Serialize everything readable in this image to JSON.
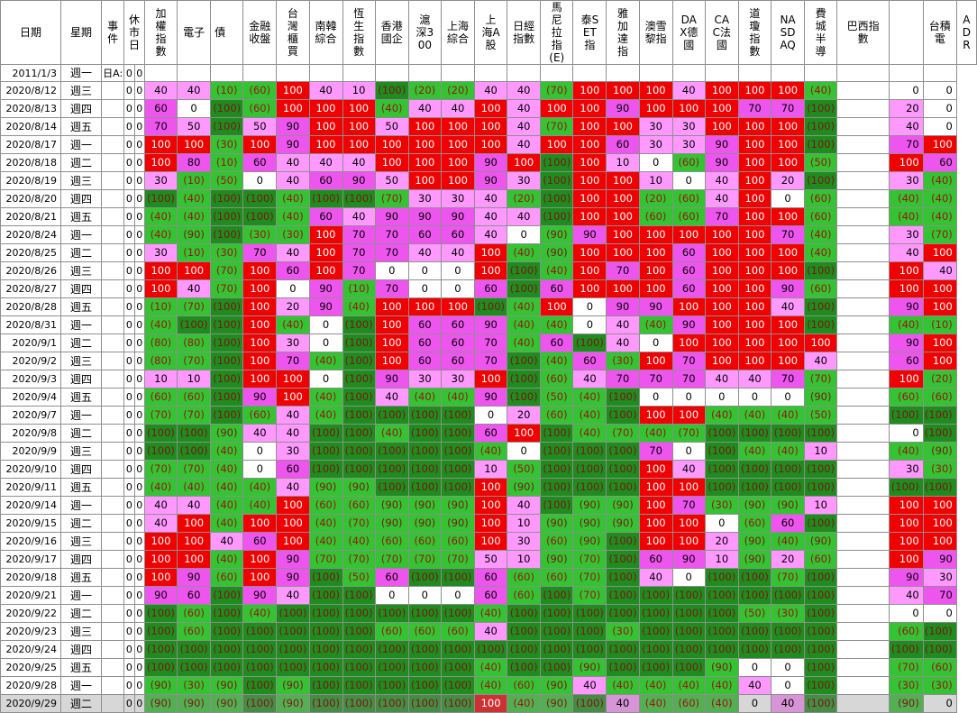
{
  "headers": [
    "日期",
    "星期",
    "事件",
    "休市日",
    "加權指數",
    "電子",
    "債",
    "金融收盤",
    "台灣櫃買",
    "南韓綜合",
    "恆生指數",
    "香港國企",
    "滬深300",
    "上海綜合",
    "上海A股",
    "日經指數",
    "馬尼拉指(E)",
    "泰SET指",
    "雅加達指",
    "澳雪黎指",
    "DAX德國",
    "CAC法國",
    "道瓊指數",
    "NASDAQ",
    "費城半導",
    "巴西指數",
    "台積電",
    "ADR"
  ],
  "palette": {
    "dark_green": "#1e8c1e",
    "light_green": "#33c333",
    "white": "#ffffff",
    "pink": "#ff99ff",
    "magenta": "#ee55ee",
    "red": "#f00000"
  },
  "rows": [
    {
      "date": "2011/1/3",
      "wk": "週一",
      "ev": "日A:",
      "h1": "0",
      "h2": "0",
      "vals": [
        "",
        "",
        "",
        "",
        "",
        "",
        "",
        "",
        "",
        "",
        "",
        "",
        "",
        "",
        "",
        "",
        "",
        "",
        "",
        "",
        "",
        "",
        "",
        ""
      ]
    },
    {
      "date": "2020/8/12",
      "wk": "週三",
      "ev": "",
      "h1": "0",
      "h2": "0",
      "vals": [
        "40",
        "40",
        "(10)",
        "(60)",
        "100",
        "40",
        "10",
        "(100)",
        "(20)",
        "(20)",
        "40",
        "40",
        "(70)",
        "100",
        "100",
        "100",
        "40",
        "100",
        "100",
        "100",
        "(40)",
        "",
        "0",
        "0"
      ]
    },
    {
      "date": "2020/8/13",
      "wk": "週四",
      "ev": "",
      "h1": "0",
      "h2": "0",
      "vals": [
        "60",
        "0",
        "(100)",
        "(60)",
        "100",
        "100",
        "100",
        "(40)",
        "40",
        "40",
        "100",
        "40",
        "100",
        "100",
        "90",
        "100",
        "100",
        "100",
        "70",
        "70",
        "(100)",
        "",
        "20",
        "0"
      ]
    },
    {
      "date": "2020/8/14",
      "wk": "週五",
      "ev": "",
      "h1": "0",
      "h2": "0",
      "vals": [
        "70",
        "50",
        "(100)",
        "50",
        "90",
        "100",
        "100",
        "50",
        "100",
        "100",
        "100",
        "40",
        "(70)",
        "100",
        "100",
        "30",
        "30",
        "100",
        "100",
        "100",
        "(100)",
        "",
        "40",
        "0"
      ]
    },
    {
      "date": "2020/8/17",
      "wk": "週一",
      "ev": "",
      "h1": "0",
      "h2": "0",
      "vals": [
        "100",
        "100",
        "(30)",
        "100",
        "90",
        "100",
        "100",
        "100",
        "100",
        "100",
        "100",
        "40",
        "100",
        "100",
        "60",
        "30",
        "30",
        "90",
        "100",
        "100",
        "(100)",
        "",
        "70",
        "100"
      ]
    },
    {
      "date": "2020/8/18",
      "wk": "週二",
      "ev": "",
      "h1": "0",
      "h2": "0",
      "vals": [
        "100",
        "80",
        "(10)",
        "60",
        "40",
        "40",
        "40",
        "100",
        "100",
        "100",
        "90",
        "100",
        "(100)",
        "100",
        "10",
        "0",
        "(60)",
        "90",
        "100",
        "100",
        "(50)",
        "",
        "100",
        "60"
      ]
    },
    {
      "date": "2020/8/19",
      "wk": "週三",
      "ev": "",
      "h1": "0",
      "h2": "0",
      "vals": [
        "30",
        "(10)",
        "(50)",
        "0",
        "40",
        "60",
        "90",
        "50",
        "100",
        "100",
        "90",
        "30",
        "(100)",
        "100",
        "100",
        "10",
        "0",
        "40",
        "100",
        "20",
        "(100)",
        "",
        "30",
        "(40)"
      ]
    },
    {
      "date": "2020/8/20",
      "wk": "週四",
      "ev": "",
      "h1": "0",
      "h2": "0",
      "vals": [
        "(100)",
        "(40)",
        "(100)",
        "(100)",
        "(40)",
        "(100)",
        "(100)",
        "(70)",
        "30",
        "30",
        "40",
        "(20)",
        "(100)",
        "100",
        "100",
        "(20)",
        "(60)",
        "40",
        "100",
        "0",
        "(60)",
        "",
        "(40)",
        "(40)"
      ]
    },
    {
      "date": "2020/8/21",
      "wk": "週五",
      "ev": "",
      "h1": "0",
      "h2": "0",
      "vals": [
        "(40)",
        "(40)",
        "(100)",
        "(100)",
        "(40)",
        "60",
        "40",
        "90",
        "90",
        "90",
        "40",
        "40",
        "(100)",
        "100",
        "100",
        "(60)",
        "(60)",
        "70",
        "100",
        "100",
        "(60)",
        "",
        "(40)",
        "(40)"
      ]
    },
    {
      "date": "2020/8/24",
      "wk": "週一",
      "ev": "",
      "h1": "0",
      "h2": "0",
      "vals": [
        "(40)",
        "(90)",
        "(100)",
        "(30)",
        "(30)",
        "100",
        "70",
        "70",
        "60",
        "60",
        "40",
        "0",
        "(90)",
        "90",
        "100",
        "100",
        "100",
        "100",
        "100",
        "70",
        "(40)",
        "",
        "30",
        "(70)"
      ]
    },
    {
      "date": "2020/8/25",
      "wk": "週二",
      "ev": "",
      "h1": "0",
      "h2": "0",
      "vals": [
        "30",
        "(10)",
        "(30)",
        "70",
        "40",
        "100",
        "70",
        "70",
        "40",
        "40",
        "100",
        "(40)",
        "(90)",
        "100",
        "100",
        "100",
        "60",
        "100",
        "100",
        "100",
        "(40)",
        "",
        "40",
        "100"
      ]
    },
    {
      "date": "2020/8/26",
      "wk": "週三",
      "ev": "",
      "h1": "0",
      "h2": "0",
      "vals": [
        "100",
        "100",
        "(70)",
        "100",
        "60",
        "100",
        "70",
        "0",
        "0",
        "0",
        "100",
        "(100)",
        "(40)",
        "100",
        "70",
        "100",
        "60",
        "100",
        "100",
        "100",
        "(100)",
        "",
        "100",
        "40"
      ]
    },
    {
      "date": "2020/8/27",
      "wk": "週四",
      "ev": "",
      "h1": "0",
      "h2": "0",
      "vals": [
        "100",
        "40",
        "(70)",
        "100",
        "0",
        "90",
        "(10)",
        "70",
        "0",
        "0",
        "60",
        "(100)",
        "60",
        "100",
        "100",
        "100",
        "60",
        "100",
        "100",
        "90",
        "(60)",
        "",
        "100",
        "100"
      ]
    },
    {
      "date": "2020/8/28",
      "wk": "週五",
      "ev": "",
      "h1": "0",
      "h2": "0",
      "vals": [
        "(10)",
        "(70)",
        "(100)",
        "100",
        "20",
        "90",
        "(40)",
        "100",
        "100",
        "100",
        "(100)",
        "(40)",
        "100",
        "0",
        "90",
        "90",
        "100",
        "100",
        "100",
        "40",
        "(100)",
        "",
        "90",
        "100"
      ]
    },
    {
      "date": "2020/8/31",
      "wk": "週一",
      "ev": "",
      "h1": "0",
      "h2": "0",
      "vals": [
        "(40)",
        "(100)",
        "(100)",
        "100",
        "(40)",
        "0",
        "(100)",
        "100",
        "60",
        "60",
        "90",
        "(40)",
        "(40)",
        "0",
        "40",
        "(40)",
        "90",
        "100",
        "100",
        "100",
        "(100)",
        "",
        "(40)",
        "(10)"
      ]
    },
    {
      "date": "2020/9/1",
      "wk": "週二",
      "ev": "",
      "h1": "0",
      "h2": "0",
      "vals": [
        "(80)",
        "(80)",
        "(100)",
        "100",
        "30",
        "0",
        "(100)",
        "100",
        "60",
        "60",
        "70",
        "(40)",
        "60",
        "(100)",
        "40",
        "0",
        "100",
        "100",
        "100",
        "100",
        "100",
        "",
        "90",
        "100"
      ]
    },
    {
      "date": "2020/9/2",
      "wk": "週三",
      "ev": "",
      "h1": "0",
      "h2": "0",
      "vals": [
        "(80)",
        "(70)",
        "(100)",
        "100",
        "70",
        "(40)",
        "(100)",
        "100",
        "60",
        "60",
        "70",
        "(100)",
        "(40)",
        "60",
        "(30)",
        "100",
        "70",
        "100",
        "100",
        "100",
        "40",
        "",
        "60",
        "100"
      ]
    },
    {
      "date": "2020/9/3",
      "wk": "週四",
      "ev": "",
      "h1": "0",
      "h2": "0",
      "vals": [
        "10",
        "10",
        "(100)",
        "100",
        "100",
        "0",
        "(100)",
        "90",
        "30",
        "30",
        "100",
        "(100)",
        "(60)",
        "40",
        "70",
        "70",
        "70",
        "40",
        "40",
        "70",
        "(70)",
        "",
        "100",
        "(20)"
      ]
    },
    {
      "date": "2020/9/4",
      "wk": "週五",
      "ev": "",
      "h1": "0",
      "h2": "0",
      "vals": [
        "(60)",
        "(60)",
        "(100)",
        "90",
        "100",
        "(40)",
        "(100)",
        "40",
        "(40)",
        "(40)",
        "90",
        "(100)",
        "(50)",
        "(40)",
        "(100)",
        "0",
        "0",
        "0",
        "0",
        "0",
        "(90)",
        "",
        "(60)",
        "(60)"
      ]
    },
    {
      "date": "2020/9/7",
      "wk": "週一",
      "ev": "",
      "h1": "0",
      "h2": "0",
      "vals": [
        "(70)",
        "(70)",
        "(100)",
        "(60)",
        "40",
        "(40)",
        "(100)",
        "(100)",
        "(100)",
        "(100)",
        "0",
        "20",
        "(60)",
        "(40)",
        "(100)",
        "100",
        "100",
        "(40)",
        "(40)",
        "(40)",
        "(50)",
        "",
        "(100)",
        "(100)"
      ]
    },
    {
      "date": "2020/9/8",
      "wk": "週二",
      "ev": "",
      "h1": "0",
      "h2": "0",
      "vals": [
        "(100)",
        "(100)",
        "(90)",
        "40",
        "40",
        "(100)",
        "(100)",
        "(40)",
        "(100)",
        "(100)",
        "60",
        "100",
        "(100)",
        "(40)",
        "(70)",
        "(40)",
        "(70)",
        "(100)",
        "(100)",
        "(100)",
        "(100)",
        "",
        "0",
        "(100)"
      ]
    },
    {
      "date": "2020/9/9",
      "wk": "週三",
      "ev": "",
      "h1": "0",
      "h2": "0",
      "vals": [
        "(100)",
        "(100)",
        "(40)",
        "0",
        "30",
        "(100)",
        "(100)",
        "(100)",
        "(100)",
        "(100)",
        "(40)",
        "0",
        "(100)",
        "(100)",
        "(100)",
        "70",
        "0",
        "(100)",
        "(40)",
        "(40)",
        "10",
        "",
        "(40)",
        "(90)"
      ]
    },
    {
      "date": "2020/9/10",
      "wk": "週四",
      "ev": "",
      "h1": "0",
      "h2": "0",
      "vals": [
        "(70)",
        "(70)",
        "(40)",
        "0",
        "60",
        "(100)",
        "(100)",
        "(100)",
        "(100)",
        "(100)",
        "10",
        "(50)",
        "(100)",
        "(100)",
        "(100)",
        "100",
        "40",
        "(100)",
        "(100)",
        "(100)",
        "(100)",
        "",
        "30",
        "(30)"
      ]
    },
    {
      "date": "2020/9/11",
      "wk": "週五",
      "ev": "",
      "h1": "0",
      "h2": "0",
      "vals": [
        "(40)",
        "(40)",
        "(40)",
        "(40)",
        "40",
        "(90)",
        "(90)",
        "(100)",
        "(100)",
        "(100)",
        "100",
        "(90)",
        "(100)",
        "(100)",
        "(100)",
        "100",
        "100",
        "(100)",
        "(100)",
        "(100)",
        "(100)",
        "",
        "(100)",
        "(100)"
      ]
    },
    {
      "date": "2020/9/14",
      "wk": "週一",
      "ev": "",
      "h1": "0",
      "h2": "0",
      "vals": [
        "40",
        "40",
        "(40)",
        "(40)",
        "100",
        "(60)",
        "(60)",
        "(90)",
        "(90)",
        "(90)",
        "100",
        "40",
        "(100)",
        "(90)",
        "(90)",
        "100",
        "70",
        "(30)",
        "(90)",
        "(90)",
        "10",
        "",
        "100",
        "100"
      ]
    },
    {
      "date": "2020/9/15",
      "wk": "週二",
      "ev": "",
      "h1": "0",
      "h2": "0",
      "vals": [
        "40",
        "100",
        "(40)",
        "100",
        "100",
        "(40)",
        "(70)",
        "(90)",
        "(90)",
        "(90)",
        "100",
        "10",
        "(90)",
        "(90)",
        "(90)",
        "100",
        "100",
        "0",
        "(60)",
        "60",
        "(100)",
        "",
        "100",
        "100"
      ]
    },
    {
      "date": "2020/9/16",
      "wk": "週三",
      "ev": "",
      "h1": "0",
      "h2": "0",
      "vals": [
        "100",
        "100",
        "40",
        "60",
        "100",
        "(40)",
        "(40)",
        "(60)",
        "(60)",
        "(60)",
        "100",
        "30",
        "(60)",
        "(90)",
        "(100)",
        "100",
        "100",
        "20",
        "(90)",
        "(40)",
        "(90)",
        "",
        "100",
        "100"
      ]
    },
    {
      "date": "2020/9/17",
      "wk": "週四",
      "ev": "",
      "h1": "0",
      "h2": "0",
      "vals": [
        "100",
        "100",
        "(40)",
        "100",
        "90",
        "(70)",
        "(70)",
        "(70)",
        "(70)",
        "(70)",
        "50",
        "10",
        "(90)",
        "(70)",
        "(100)",
        "60",
        "90",
        "10",
        "(90)",
        "20",
        "(60)",
        "",
        "100",
        "90"
      ]
    },
    {
      "date": "2020/9/18",
      "wk": "週五",
      "ev": "",
      "h1": "0",
      "h2": "0",
      "vals": [
        "100",
        "90",
        "(60)",
        "100",
        "90",
        "(100)",
        "(50)",
        "60",
        "(100)",
        "(100)",
        "60",
        "(60)",
        "(60)",
        "(70)",
        "(100)",
        "40",
        "0",
        "(100)",
        "(100)",
        "(70)",
        "(100)",
        "",
        "90",
        "30"
      ]
    },
    {
      "date": "2020/9/21",
      "wk": "週一",
      "ev": "",
      "h1": "0",
      "h2": "0",
      "vals": [
        "90",
        "60",
        "(100)",
        "90",
        "40",
        "(100)",
        "(100)",
        "0",
        "0",
        "0",
        "60",
        "(60)",
        "(100)",
        "(70)",
        "(100)",
        "(100)",
        "(100)",
        "(100)",
        "(100)",
        "(100)",
        "(100)",
        "",
        "40",
        "70"
      ]
    },
    {
      "date": "2020/9/22",
      "wk": "週二",
      "ev": "",
      "h1": "0",
      "h2": "0",
      "vals": [
        "(100)",
        "(60)",
        "(100)",
        "(40)",
        "(100)",
        "(100)",
        "(100)",
        "(100)",
        "(100)",
        "(100)",
        "(40)",
        "(100)",
        "(100)",
        "(100)",
        "(100)",
        "(100)",
        "(100)",
        "(100)",
        "(50)",
        "(30)",
        "(100)",
        "",
        "0",
        "0"
      ]
    },
    {
      "date": "2020/9/23",
      "wk": "週三",
      "ev": "",
      "h1": "0",
      "h2": "0",
      "vals": [
        "(100)",
        "(60)",
        "(100)",
        "(100)",
        "(100)",
        "(100)",
        "(100)",
        "(60)",
        "(60)",
        "(60)",
        "40",
        "(100)",
        "(100)",
        "(100)",
        "(30)",
        "(100)",
        "(100)",
        "(100)",
        "(100)",
        "(100)",
        "(100)",
        "",
        "(60)",
        "(100)"
      ]
    },
    {
      "date": "2020/9/24",
      "wk": "週四",
      "ev": "",
      "h1": "0",
      "h2": "0",
      "vals": [
        "(100)",
        "(100)",
        "(100)",
        "(100)",
        "(100)",
        "(100)",
        "(100)",
        "(100)",
        "(100)",
        "(100)",
        "(100)",
        "(100)",
        "(100)",
        "(100)",
        "(100)",
        "(100)",
        "(100)",
        "(100)",
        "(100)",
        "(100)",
        "(100)",
        "",
        "(100)",
        "(100)"
      ]
    },
    {
      "date": "2020/9/25",
      "wk": "週五",
      "ev": "",
      "h1": "0",
      "h2": "0",
      "vals": [
        "(100)",
        "(100)",
        "(100)",
        "(100)",
        "(100)",
        "(100)",
        "(100)",
        "(100)",
        "(100)",
        "(100)",
        "(40)",
        "(100)",
        "(100)",
        "(90)",
        "(100)",
        "(100)",
        "(100)",
        "(90)",
        "0",
        "0",
        "(100)",
        "",
        "(70)",
        "(60)"
      ]
    },
    {
      "date": "2020/9/28",
      "wk": "週一",
      "ev": "",
      "h1": "0",
      "h2": "0",
      "vals": [
        "(90)",
        "(30)",
        "(90)",
        "(100)",
        "(90)",
        "(100)",
        "(100)",
        "(100)",
        "(100)",
        "(100)",
        "(40)",
        "(60)",
        "(90)",
        "40",
        "(40)",
        "(40)",
        "(40)",
        "(40)",
        "40",
        "0",
        "(100)",
        "",
        "(30)",
        "(30)"
      ]
    },
    {
      "date": "2020/9/29",
      "wk": "週二",
      "ev": "",
      "h1": "0",
      "h2": "0",
      "vals": [
        "(90)",
        "(90)",
        "(90)",
        "(100)",
        "(90)",
        "(100)",
        "(100)",
        "(100)",
        "(100)",
        "(100)",
        "100",
        "(40)",
        "(90)",
        "(100)",
        "40",
        "(40)",
        "(60)",
        "(40)",
        "0",
        "40",
        "(100)",
        "",
        "(90)",
        "0"
      ]
    }
  ]
}
